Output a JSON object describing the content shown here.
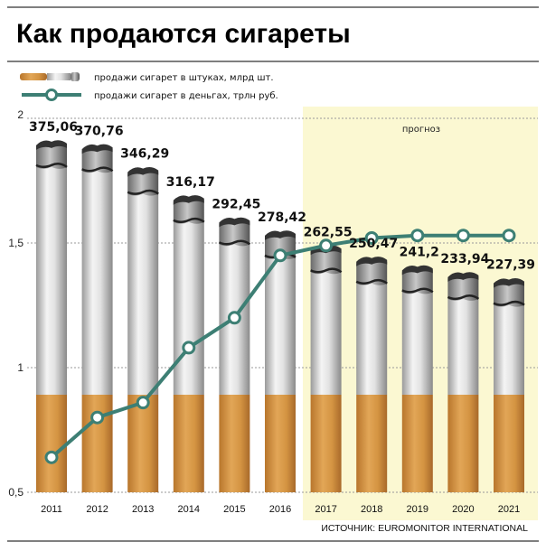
{
  "title": "Как продаются сигареты",
  "legend": {
    "pieces": "продажи сигарет в штуках, млрд шт.",
    "money": "продажи сигарет в деньгах, трлн руб."
  },
  "forecast_label": "прогноз",
  "source": "ИСТОЧНИК: EUROMONITOR INTERNATIONAL",
  "colors": {
    "line": "#3d7f74",
    "forecast_bg": "#fbf8d2",
    "filter": "#d89a48"
  },
  "chart_data": {
    "type": "bar+line",
    "title": "Как продаются сигареты",
    "categories": [
      "2011",
      "2012",
      "2013",
      "2014",
      "2015",
      "2016",
      "2017",
      "2018",
      "2019",
      "2020",
      "2021"
    ],
    "forecast_from": "2017",
    "series": [
      {
        "name": "продажи сигарет в штуках, млрд шт.",
        "type": "bar",
        "values": [
          375.06,
          370.76,
          346.29,
          316.17,
          292.45,
          278.42,
          262.55,
          250.47,
          241.2,
          233.94,
          227.39
        ],
        "labels": [
          "375,06",
          "370,76",
          "346,29",
          "316,17",
          "292,45",
          "278,42",
          "262,55",
          "250,47",
          "241,2",
          "233,94",
          "227,39"
        ]
      },
      {
        "name": "продажи сигарет в деньгах, трлн руб.",
        "type": "line",
        "values": [
          0.64,
          0.8,
          0.86,
          1.08,
          1.2,
          1.45,
          1.49,
          1.52,
          1.53,
          1.53,
          1.53
        ]
      }
    ],
    "y_axis": {
      "ticks": [
        "2",
        "1,5",
        "1",
        "0,5"
      ],
      "tick_values": [
        2,
        1.5,
        1,
        0.5
      ],
      "ylim": [
        0.5,
        2
      ]
    },
    "grid": true
  }
}
